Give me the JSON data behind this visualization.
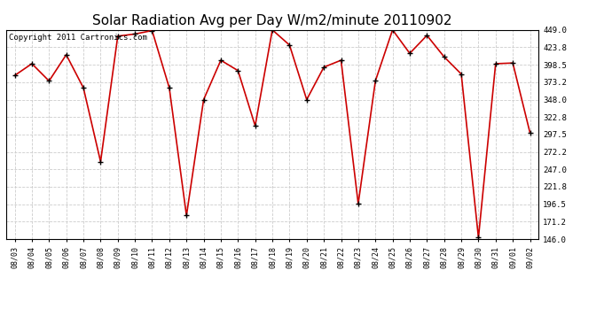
{
  "title": "Solar Radiation Avg per Day W/m2/minute 20110902",
  "copyright": "Copyright 2011 Cartronics.com",
  "dates": [
    "08/03",
    "08/04",
    "08/05",
    "08/06",
    "08/07",
    "08/08",
    "08/09",
    "08/10",
    "08/11",
    "08/12",
    "08/13",
    "08/14",
    "08/15",
    "08/16",
    "08/17",
    "08/18",
    "08/19",
    "08/20",
    "08/21",
    "08/22",
    "08/23",
    "08/24",
    "08/25",
    "08/26",
    "08/27",
    "08/28",
    "08/29",
    "08/30",
    "08/31",
    "09/01",
    "09/02"
  ],
  "values": [
    383,
    400,
    375,
    413,
    365,
    258,
    440,
    443,
    448,
    365,
    180,
    348,
    405,
    390,
    310,
    449,
    427,
    348,
    395,
    405,
    197,
    375,
    449,
    415,
    441,
    410,
    385,
    148,
    400,
    401,
    300
  ],
  "line_color": "#cc0000",
  "marker_color": "#000000",
  "bg_color": "#ffffff",
  "grid_color": "#cccccc",
  "ymin": 146.0,
  "ymax": 449.0,
  "yticks": [
    146.0,
    171.2,
    196.5,
    221.8,
    247.0,
    272.2,
    297.5,
    322.8,
    348.0,
    373.2,
    398.5,
    423.8,
    449.0
  ],
  "title_fontsize": 11,
  "copyright_fontsize": 6.5
}
